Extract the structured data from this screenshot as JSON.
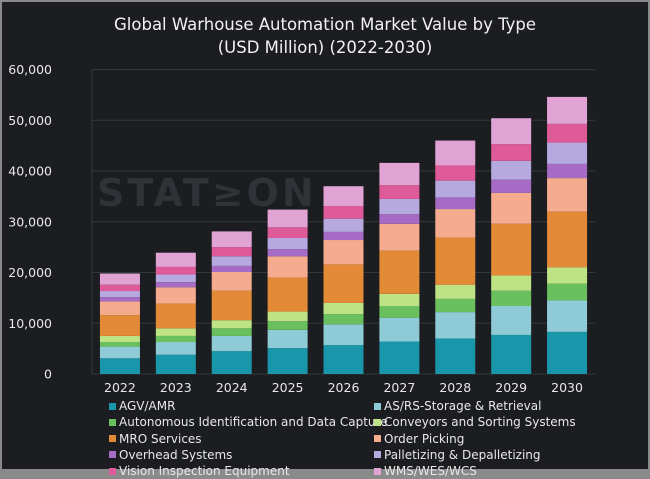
{
  "chart_data": {
    "type": "bar",
    "stacked": true,
    "title": "Global Warhouse Automation Market Value by Type",
    "subtitle": "(USD Million) (2022-2030)",
    "xlabel": "",
    "ylabel": "",
    "ylim": [
      0,
      60000
    ],
    "yticks": [
      "0",
      "10,000",
      "20,000",
      "30,000",
      "40,000",
      "50,000",
      "60,000"
    ],
    "grid": true,
    "legend_position": "bottom",
    "watermark": "STATZON",
    "categories": [
      "2022",
      "2023",
      "2024",
      "2025",
      "2026",
      "2027",
      "2028",
      "2029",
      "2030"
    ],
    "series": [
      {
        "name": "AGV/AMR",
        "color": "#1a96aa",
        "values": [
          3100,
          3800,
          4500,
          5100,
          5700,
          6400,
          7000,
          7700,
          8300
        ]
      },
      {
        "name": "AS/RS-Storage & Retrieval",
        "color": "#8ecbd6",
        "values": [
          2300,
          2500,
          3000,
          3600,
          4100,
          4700,
          5200,
          5700,
          6200
        ]
      },
      {
        "name": "Autonomous Identification and Data Capture",
        "color": "#6abf5e",
        "values": [
          900,
          1200,
          1500,
          1700,
          2000,
          2300,
          2600,
          3000,
          3300
        ]
      },
      {
        "name": "Conveyors and Sorting Systems",
        "color": "#bde384",
        "values": [
          1200,
          1500,
          1600,
          1900,
          2200,
          2400,
          2800,
          3000,
          3200
        ]
      },
      {
        "name": "MRO Services",
        "color": "#e28a35",
        "values": [
          4100,
          4900,
          5800,
          6700,
          7600,
          8500,
          9300,
          10200,
          11000
        ]
      },
      {
        "name": "Order Picking",
        "color": "#f4ab8e",
        "values": [
          2700,
          3200,
          3700,
          4200,
          4800,
          5300,
          5600,
          6100,
          6600
        ]
      },
      {
        "name": "Overhead Systems",
        "color": "#a66bc4",
        "values": [
          850,
          1000,
          1200,
          1400,
          1600,
          1900,
          2300,
          2600,
          2800
        ]
      },
      {
        "name": "Palletizing & Depalletizing",
        "color": "#b5a9e0",
        "values": [
          1200,
          1500,
          1900,
          2200,
          2600,
          3000,
          3300,
          3700,
          4200
        ]
      },
      {
        "name": "Vision Inspection Equipment",
        "color": "#de5a98",
        "values": [
          1250,
          1500,
          1800,
          2100,
          2500,
          2700,
          3000,
          3300,
          3700
        ]
      },
      {
        "name": "WMS/WES/WCS",
        "color": "#e0a3d4",
        "values": [
          2200,
          2800,
          3100,
          3500,
          3900,
          4400,
          4900,
          5100,
          5300
        ]
      }
    ]
  }
}
